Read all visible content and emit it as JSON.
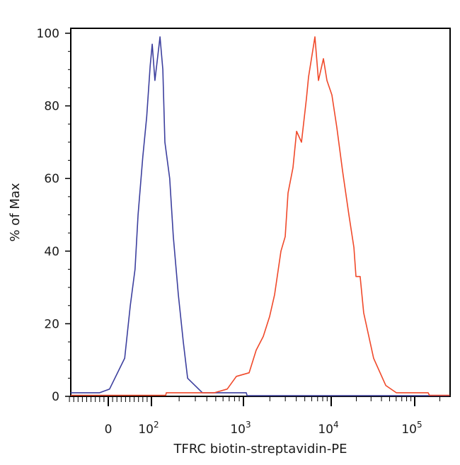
{
  "chart_data": {
    "type": "line",
    "title": "",
    "xlabel": "TFRC biotin-streptavidin-PE",
    "ylabel": "% of Max",
    "x_scale": "biexponential",
    "xlim": [
      -90,
      262000
    ],
    "ylim": [
      0,
      100
    ],
    "grid": false,
    "legend": "none",
    "x_ticks": [
      {
        "value": 0,
        "label": "0",
        "exp": ""
      },
      {
        "value": 100,
        "label": "10",
        "exp": "2"
      },
      {
        "value": 1000,
        "label": "10",
        "exp": "3"
      },
      {
        "value": 10000,
        "label": "10",
        "exp": "4"
      },
      {
        "value": 100000,
        "label": "10",
        "exp": "5"
      }
    ],
    "y_ticks": [
      0,
      20,
      40,
      60,
      80,
      100
    ],
    "series": [
      {
        "color": "#3c3f9e",
        "points": [
          [
            -87,
            1
          ],
          [
            -20,
            1
          ],
          [
            3,
            2
          ],
          [
            38,
            10.5
          ],
          [
            51,
            25
          ],
          [
            62,
            35
          ],
          [
            69,
            50
          ],
          [
            80,
            66
          ],
          [
            89,
            77
          ],
          [
            97,
            91
          ],
          [
            102,
            97
          ],
          [
            109,
            87
          ],
          [
            124,
            99
          ],
          [
            133,
            90
          ],
          [
            140,
            70
          ],
          [
            158,
            60
          ],
          [
            173,
            44
          ],
          [
            196,
            28
          ],
          [
            222,
            15
          ],
          [
            247,
            5
          ],
          [
            358,
            1
          ],
          [
            1077,
            1
          ],
          [
            1100,
            0.2
          ],
          [
            262000,
            0.2
          ]
        ]
      },
      {
        "color": "#f0492a",
        "points": [
          [
            -87,
            0.3
          ],
          [
            143,
            0.3
          ],
          [
            145,
            1
          ],
          [
            484,
            1
          ],
          [
            666,
            2
          ],
          [
            838,
            5.5
          ],
          [
            1160,
            6.5
          ],
          [
            1397,
            12.7
          ],
          [
            1683,
            16.5
          ],
          [
            1988,
            22
          ],
          [
            2263,
            28
          ],
          [
            2675,
            40
          ],
          [
            2992,
            44
          ],
          [
            3220,
            56
          ],
          [
            3670,
            63
          ],
          [
            4030,
            73
          ],
          [
            4585,
            70
          ],
          [
            5220,
            82
          ],
          [
            5520,
            88
          ],
          [
            6530,
            99
          ],
          [
            7160,
            87
          ],
          [
            8150,
            93
          ],
          [
            8950,
            87
          ],
          [
            10200,
            83
          ],
          [
            11700,
            74
          ],
          [
            13700,
            62
          ],
          [
            16300,
            50
          ],
          [
            18700,
            41
          ],
          [
            19800,
            33
          ],
          [
            22200,
            33
          ],
          [
            24500,
            23
          ],
          [
            32200,
            10.5
          ],
          [
            45000,
            3
          ],
          [
            60200,
            1
          ],
          [
            145000,
            1
          ],
          [
            150000,
            0.3
          ],
          [
            262000,
            0.3
          ]
        ]
      }
    ]
  }
}
